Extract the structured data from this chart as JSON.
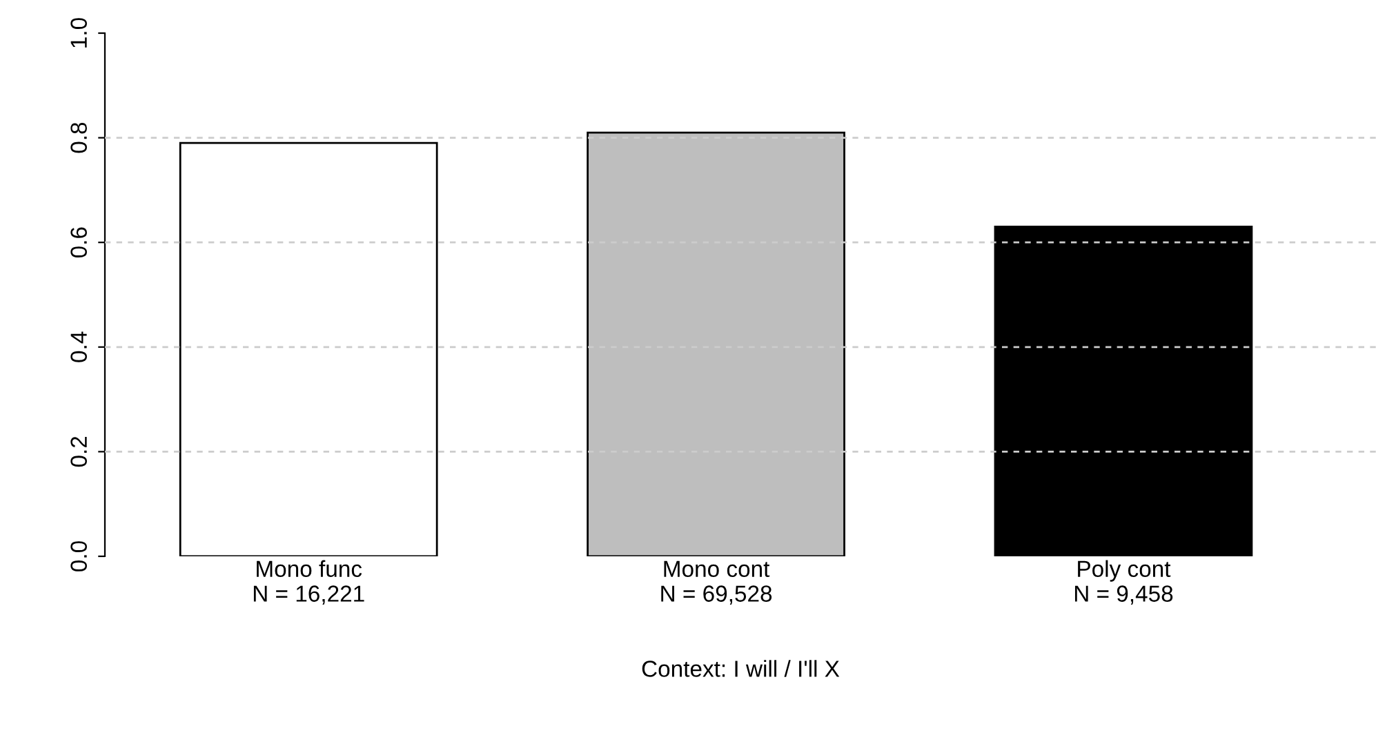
{
  "chart_data": {
    "type": "bar",
    "xlabel": "Context: I will / I'll X",
    "categories": [
      "Mono func\nN = 16,221",
      "Mono cont\nN = 69,528",
      "Poly cont\nN = 9,458"
    ],
    "values": [
      0.79,
      0.81,
      0.63
    ],
    "colors": [
      "#ffffff",
      "#bebebe",
      "#000000"
    ],
    "ylim": [
      0,
      1
    ],
    "yticks": [
      {
        "value": 0,
        "label": "0.0"
      },
      0.2,
      0.4,
      0.6,
      0.8,
      {
        "value": 1,
        "label": "1.0"
      }
    ],
    "grid": "y"
  }
}
